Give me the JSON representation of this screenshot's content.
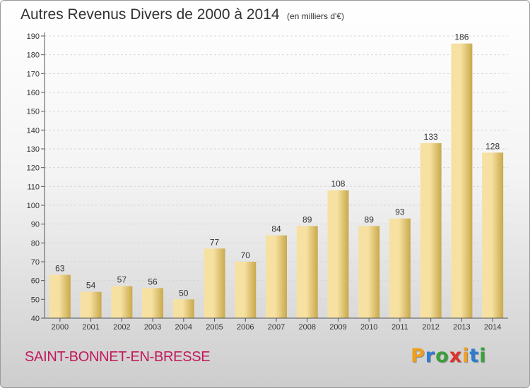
{
  "title": "Autres Revenus Divers de 2000 à 2014",
  "subtitle": "(en milliers d'€)",
  "commune": "SAINT-BONNET-EN-BRESSE",
  "brand": {
    "letters": [
      "P",
      "r",
      "o",
      "x",
      "i",
      "t",
      "i"
    ],
    "colors": [
      "#f0a01e",
      "#2c7cd0",
      "#3aa03a",
      "#e0312a",
      "#f0a01e",
      "#2c7cd0",
      "#3aa03a"
    ]
  },
  "colors": {
    "bar_light": "#f7e1a2",
    "bar_dark": "#c9a94c",
    "axis": "#555555"
  },
  "chart_data": {
    "type": "bar",
    "categories": [
      "2000",
      "2001",
      "2002",
      "2003",
      "2004",
      "2005",
      "2006",
      "2007",
      "2008",
      "2009",
      "2010",
      "2011",
      "2012",
      "2013",
      "2014"
    ],
    "values": [
      63,
      54,
      57,
      56,
      50,
      77,
      70,
      84,
      89,
      108,
      89,
      93,
      133,
      186,
      128
    ],
    "ylim": [
      40,
      190
    ],
    "yticks": [
      40,
      50,
      60,
      70,
      80,
      90,
      100,
      110,
      120,
      130,
      140,
      150,
      160,
      170,
      180,
      190
    ],
    "xlabel": "",
    "ylabel": "",
    "grid": true,
    "data_labels": true
  }
}
